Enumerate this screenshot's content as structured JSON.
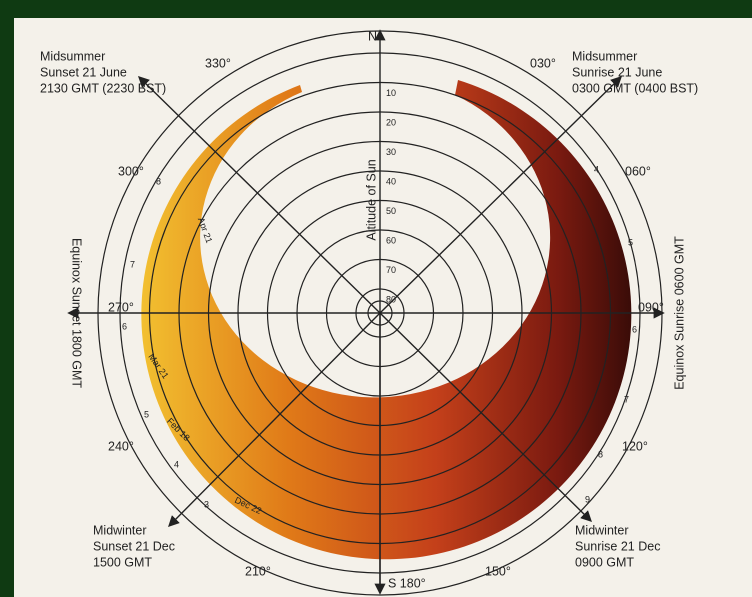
{
  "compass": {
    "north": "N",
    "south": "S 180°"
  },
  "axis_label": "Altitude of Sun",
  "altitudes": [
    "10",
    "20",
    "30",
    "40",
    "50",
    "60",
    "70",
    "80"
  ],
  "bearings": [
    "330°",
    "030°",
    "300°",
    "060°",
    "270°",
    "090°",
    "240°",
    "120°",
    "210°",
    "150°"
  ],
  "corner_notes": [
    {
      "lines": [
        "Midsummer",
        "Sunset 21 June",
        "2130 GMT (2230 BST)"
      ]
    },
    {
      "lines": [
        "Midsummer",
        "Sunrise 21 June",
        "0300 GMT (0400 BST)"
      ]
    },
    {
      "lines": [
        "Midwinter",
        "Sunset 21 Dec",
        "1500 GMT"
      ]
    },
    {
      "lines": [
        "Midwinter",
        "Sunrise 21 Dec",
        "0900 GMT"
      ]
    }
  ],
  "side_notes": [
    "Equinox Sunset 1800 GMT",
    "Equinox Sunrise 0600 GMT"
  ],
  "hours_left": [
    "8",
    "7",
    "6",
    "5",
    "4",
    "3"
  ],
  "hours_right": [
    "4",
    "5",
    "6",
    "7",
    "8",
    "9"
  ],
  "dates": [
    "Apr 21",
    "Mar 21",
    "Feb 18",
    "Dec 22"
  ]
}
